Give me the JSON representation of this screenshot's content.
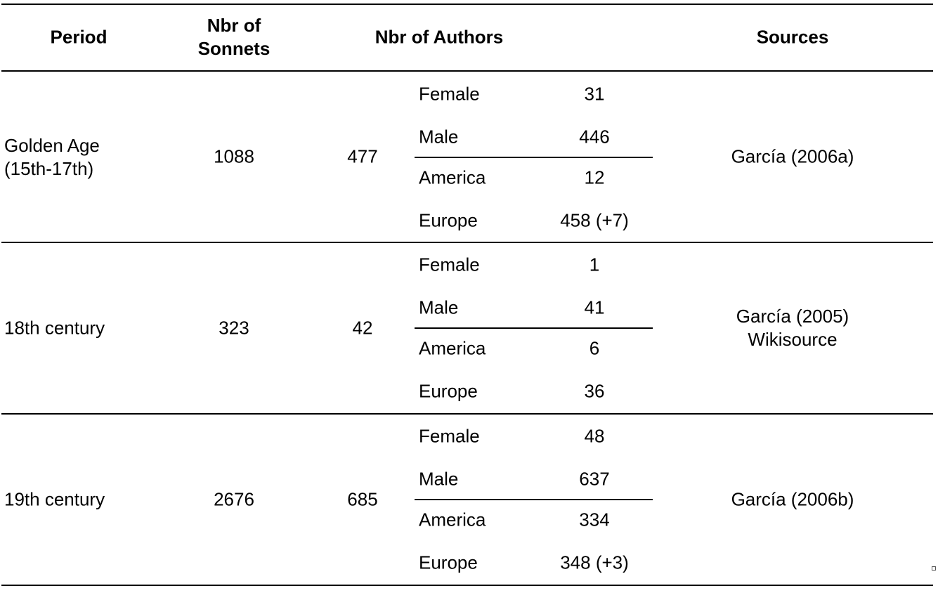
{
  "headers": {
    "period": "Period",
    "sonnets_line1": "Nbr of",
    "sonnets_line2": "Sonnets",
    "authors": "Nbr of Authors",
    "sources": "Sources"
  },
  "rows": [
    {
      "period_line1": "Golden Age",
      "period_line2": "(15th-17th)",
      "sonnets": "1088",
      "authors": "477",
      "breakdown": [
        {
          "label": "Female",
          "value": "31"
        },
        {
          "label": "Male",
          "value": "446"
        },
        {
          "label": "America",
          "value": "12"
        },
        {
          "label": "Europe",
          "value": "458 (+7)"
        }
      ],
      "source_line1": "García (2006a)",
      "source_line2": ""
    },
    {
      "period_line1": "18th century",
      "period_line2": "",
      "sonnets": "323",
      "authors": "42",
      "breakdown": [
        {
          "label": "Female",
          "value": "1"
        },
        {
          "label": "Male",
          "value": "41"
        },
        {
          "label": "America",
          "value": "6"
        },
        {
          "label": "Europe",
          "value": "36"
        }
      ],
      "source_line1": "García (2005)",
      "source_line2": "Wikisource"
    },
    {
      "period_line1": "19th century",
      "period_line2": "",
      "sonnets": "2676",
      "authors": "685",
      "breakdown": [
        {
          "label": "Female",
          "value": "48"
        },
        {
          "label": "Male",
          "value": "637"
        },
        {
          "label": "America",
          "value": "334"
        },
        {
          "label": "Europe",
          "value": "348 (+3)"
        }
      ],
      "source_line1": "García (2006b)",
      "source_line2": ""
    }
  ]
}
